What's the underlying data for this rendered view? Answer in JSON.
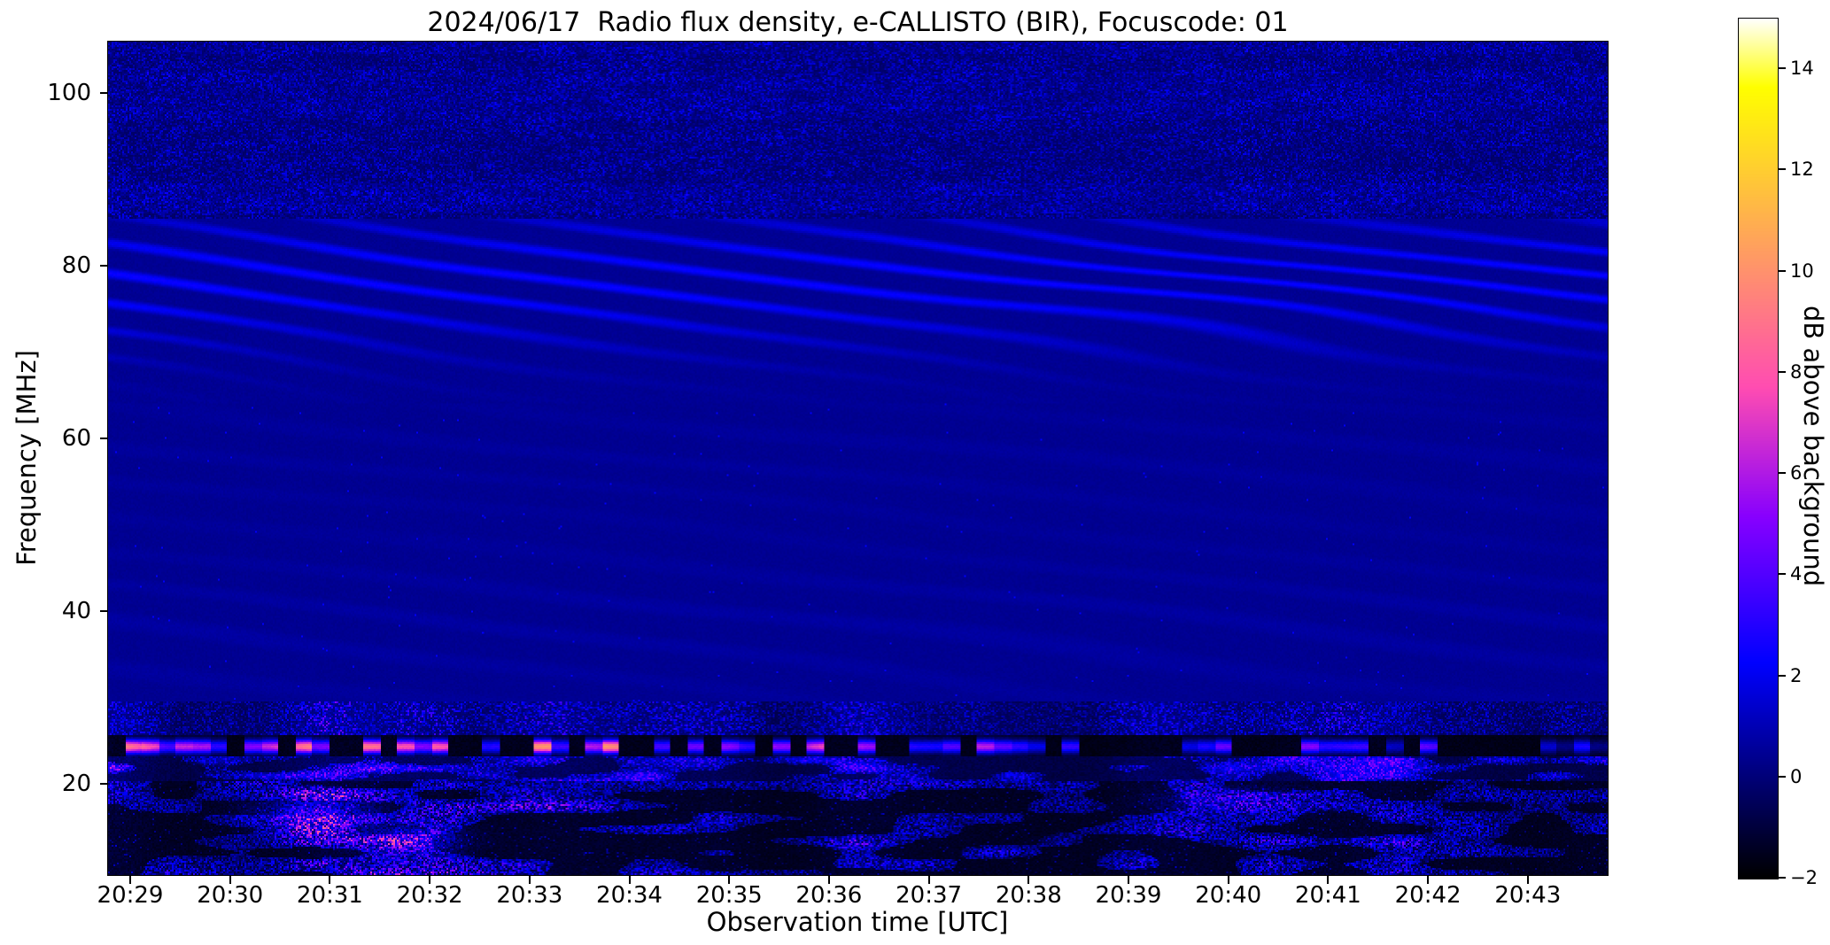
{
  "chart_data": {
    "type": "heatmap",
    "title": "2024/06/17  Radio flux density, e-CALLISTO (BIR), Focuscode: 01",
    "xlabel": "Observation time [UTC]",
    "ylabel": "Frequency [MHz]",
    "colorbar_label": "dB above background",
    "x_ticks": [
      "20:29",
      "20:30",
      "20:31",
      "20:32",
      "20:33",
      "20:34",
      "20:35",
      "20:36",
      "20:37",
      "20:38",
      "20:39",
      "20:40",
      "20:41",
      "20:42",
      "20:43"
    ],
    "y_ticks": [
      {
        "label": "100",
        "value": 100
      },
      {
        "label": "80",
        "value": 80
      },
      {
        "label": "60",
        "value": 60
      },
      {
        "label": "40",
        "value": 40
      },
      {
        "label": "20",
        "value": 20
      }
    ],
    "colorbar_ticks": [
      {
        "label": "14",
        "value": 14
      },
      {
        "label": "12",
        "value": 12
      },
      {
        "label": "10",
        "value": 10
      },
      {
        "label": "8",
        "value": 8
      },
      {
        "label": "6",
        "value": 6
      },
      {
        "label": "4",
        "value": 4
      },
      {
        "label": "2",
        "value": 2
      },
      {
        "label": "0",
        "value": 0
      },
      {
        "label": "−2",
        "value": -2
      }
    ],
    "freq_range_mhz": [
      9.4,
      106
    ],
    "time_span_minutes": 15,
    "value_range_db": [
      -2,
      15
    ],
    "colormap": "gnuplot2",
    "grid": false,
    "legend_position": "right-colorbar",
    "features": [
      {
        "name": "quiet-background",
        "freq_mhz": [
          29.5,
          64
        ],
        "typical_db": "0–1",
        "description": "smooth dark-blue background near 0 dB with very faint slanted ripples"
      },
      {
        "name": "ionospheric-fringes",
        "freq_mhz": [
          64,
          86
        ],
        "typical_db": "0.5–2.5",
        "description": "diagonal wavy blue interference fringes with ~3 MHz spacing, strongest 74–83 MHz, drifting and wiggling across the full 15 minutes"
      },
      {
        "name": "fm-band-speckle",
        "freq_mhz": [
          86,
          106
        ],
        "typical_db": "-1–2",
        "description": "fine speckled noise; brighter mottled bands near 87–89 MHz and 98–102 MHz"
      },
      {
        "name": "speckle-band",
        "freq_mhz": [
          25.5,
          29.5
        ],
        "typical_db": "0–4",
        "description": "dense blue speckle with columnar bright/dark modulation"
      },
      {
        "name": "burst-line",
        "freq_mhz": [
          23,
          25.5
        ],
        "typical_db": "up to 15",
        "description": "dashed horizontal line of bright bursts on a black band: yellow/white segments strongest 20:29–20:34, fading to violet/blue toward 20:43"
      },
      {
        "name": "hf-noise-patches",
        "freq_mhz": [
          9.4,
          23
        ],
        "typical_db": "-2–8",
        "description": "black background with patchy blue noise blobs and occasional magenta/pink cores, e.g. near 20:31 and 20:32 around 13–18 MHz"
      }
    ]
  }
}
